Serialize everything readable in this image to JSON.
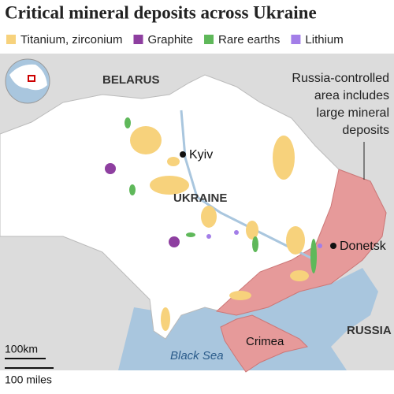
{
  "header": {
    "title": "Critical mineral deposits across Ukraine"
  },
  "legend": [
    {
      "name": "Titanium, zirconium",
      "color": "#f7d27c"
    },
    {
      "name": "Graphite",
      "color": "#8e3fa0"
    },
    {
      "name": "Rare earths",
      "color": "#5fb85a"
    },
    {
      "name": "Lithium",
      "color": "#a37ee8"
    }
  ],
  "labels": {
    "belarus": "BELARUS",
    "kyiv": "Kyiv",
    "ukraine": "UKRAINE",
    "donetsk": "Donetsk",
    "russia": "RUSSIA",
    "crimea": "Crimea",
    "sea": "Black Sea"
  },
  "annotation": [
    "Russia-controlled",
    "area includes",
    "large mineral",
    "deposits"
  ],
  "scale": {
    "km": "100km",
    "miles": "100 miles"
  }
}
